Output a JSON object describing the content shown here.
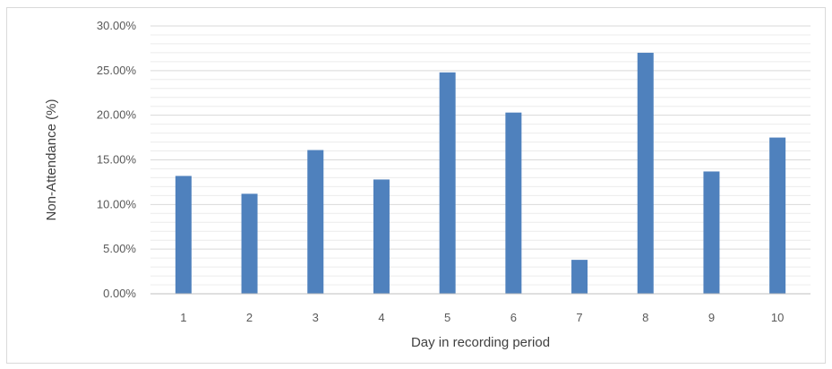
{
  "chart_data": {
    "type": "bar",
    "categories": [
      "1",
      "2",
      "3",
      "4",
      "5",
      "6",
      "7",
      "8",
      "9",
      "10"
    ],
    "values": [
      0.132,
      0.112,
      0.161,
      0.128,
      0.248,
      0.203,
      0.038,
      0.27,
      0.137,
      0.175
    ],
    "xlabel": "Day in recording period",
    "ylabel": "Non-Attendance (%)",
    "ylim": [
      0,
      0.3
    ],
    "ytick_values": [
      0,
      0.05,
      0.1,
      0.15,
      0.2,
      0.25,
      0.3
    ],
    "ytick_labels": [
      "0.00%",
      "5.00%",
      "10.00%",
      "15.00%",
      "20.00%",
      "25.00%",
      "30.00%"
    ],
    "bar_color": "#4f81bd",
    "grid": true,
    "legend": "none"
  }
}
